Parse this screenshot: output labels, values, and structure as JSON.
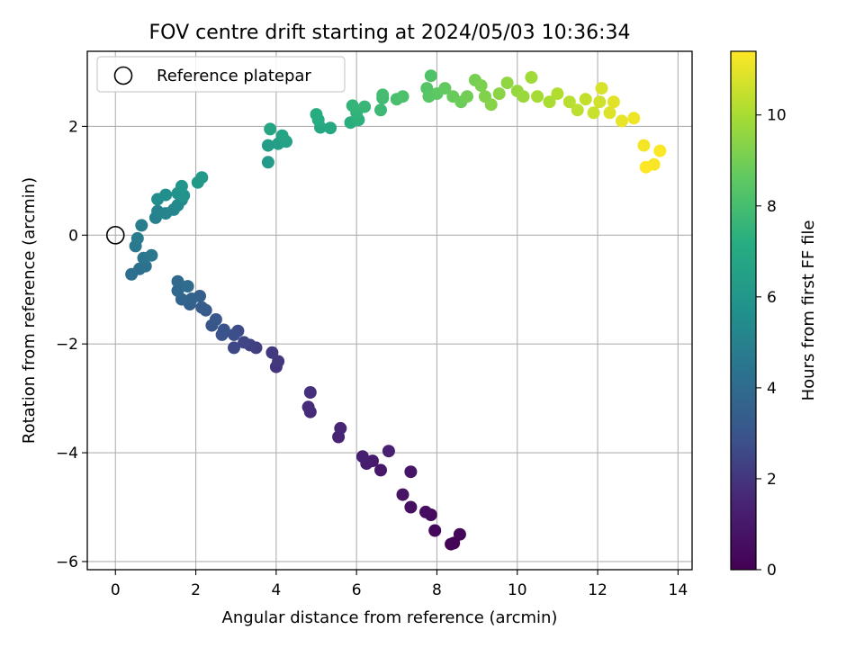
{
  "chart_data": {
    "type": "scatter",
    "title": "FOV centre drift starting at 2024/05/03 10:36:34",
    "xlabel": "Angular distance from reference (arcmin)",
    "ylabel": "Rotation from reference (arcmin)",
    "xlim": [
      -0.7,
      14.35
    ],
    "ylim": [
      -6.15,
      3.38
    ],
    "xticks": [
      0,
      2,
      4,
      6,
      8,
      10,
      12,
      14
    ],
    "yticks": [
      -6,
      -4,
      -2,
      0,
      2
    ],
    "xtick_labels": [
      "0",
      "2",
      "4",
      "6",
      "8",
      "10",
      "12",
      "14"
    ],
    "ytick_labels": [
      "−6",
      "−4",
      "−2",
      "0",
      "2"
    ],
    "grid": true,
    "legend": {
      "placement": "top-left",
      "entries": [
        {
          "label": "Reference platepar",
          "marker": "hollow-circle"
        }
      ]
    },
    "reference_point": {
      "x": 0,
      "y": 0
    },
    "colorbar": {
      "label": "Hours from first FF file",
      "range": [
        0,
        11.4
      ],
      "ticks": [
        0,
        2,
        4,
        6,
        8,
        10
      ],
      "tick_labels": [
        "0",
        "2",
        "4",
        "6",
        "8",
        "10"
      ],
      "colormap": "viridis"
    },
    "points": [
      [
        8.35,
        -5.68,
        0.05
      ],
      [
        8.42,
        -5.66,
        0.15
      ],
      [
        8.57,
        -5.5,
        0.25
      ],
      [
        7.95,
        -5.43,
        0.35
      ],
      [
        7.85,
        -5.14,
        0.45
      ],
      [
        7.72,
        -5.09,
        0.55
      ],
      [
        7.35,
        -5.0,
        0.65
      ],
      [
        7.15,
        -4.77,
        0.75
      ],
      [
        7.35,
        -4.35,
        0.85
      ],
      [
        6.6,
        -4.32,
        0.95
      ],
      [
        6.4,
        -4.15,
        1.05
      ],
      [
        6.25,
        -4.2,
        1.15
      ],
      [
        6.15,
        -4.07,
        1.25
      ],
      [
        6.8,
        -3.97,
        1.35
      ],
      [
        5.55,
        -3.71,
        1.45
      ],
      [
        5.6,
        -3.55,
        1.55
      ],
      [
        4.85,
        -3.25,
        1.65
      ],
      [
        4.8,
        -3.16,
        1.75
      ],
      [
        4.85,
        -2.89,
        1.85
      ],
      [
        4.0,
        -2.42,
        1.95
      ],
      [
        4.05,
        -2.32,
        2.05
      ],
      [
        3.9,
        -2.16,
        2.15
      ],
      [
        3.5,
        -2.07,
        2.25
      ],
      [
        3.35,
        -2.02,
        2.35
      ],
      [
        3.2,
        -1.97,
        2.45
      ],
      [
        2.95,
        -2.07,
        2.55
      ],
      [
        3.05,
        -1.76,
        2.65
      ],
      [
        2.95,
        -1.83,
        2.75
      ],
      [
        2.65,
        -1.83,
        2.85
      ],
      [
        2.7,
        -1.74,
        2.95
      ],
      [
        2.4,
        -1.66,
        3.05
      ],
      [
        2.5,
        -1.55,
        3.15
      ],
      [
        2.25,
        -1.38,
        3.25
      ],
      [
        2.15,
        -1.33,
        3.35
      ],
      [
        2.1,
        -1.12,
        3.45
      ],
      [
        1.85,
        -1.27,
        3.55
      ],
      [
        1.9,
        -1.17,
        3.65
      ],
      [
        1.65,
        -1.18,
        3.75
      ],
      [
        1.55,
        -1.02,
        3.85
      ],
      [
        1.55,
        -0.85,
        3.95
      ],
      [
        1.8,
        -0.94,
        4.05
      ],
      [
        0.4,
        -0.72,
        4.15
      ],
      [
        0.6,
        -0.62,
        4.25
      ],
      [
        0.75,
        -0.57,
        4.35
      ],
      [
        0.7,
        -0.42,
        4.45
      ],
      [
        0.9,
        -0.37,
        4.55
      ],
      [
        0.5,
        -0.2,
        4.65
      ],
      [
        0.55,
        -0.06,
        4.75
      ],
      [
        0.65,
        0.18,
        4.85
      ],
      [
        1.0,
        0.32,
        4.95
      ],
      [
        1.05,
        0.44,
        5.05
      ],
      [
        1.25,
        0.4,
        5.15
      ],
      [
        1.45,
        0.47,
        5.25
      ],
      [
        1.55,
        0.55,
        5.35
      ],
      [
        1.65,
        0.65,
        5.45
      ],
      [
        1.05,
        0.66,
        5.55
      ],
      [
        1.25,
        0.74,
        5.65
      ],
      [
        1.55,
        0.77,
        5.75
      ],
      [
        1.7,
        0.73,
        5.85
      ],
      [
        1.65,
        0.9,
        5.95
      ],
      [
        2.05,
        0.97,
        6.05
      ],
      [
        2.15,
        1.06,
        6.15
      ],
      [
        3.8,
        1.34,
        6.25
      ],
      [
        3.8,
        1.65,
        6.35
      ],
      [
        4.05,
        1.68,
        6.45
      ],
      [
        4.25,
        1.72,
        6.55
      ],
      [
        4.15,
        1.83,
        6.65
      ],
      [
        3.85,
        1.95,
        6.75
      ],
      [
        5.1,
        1.98,
        6.85
      ],
      [
        5.35,
        1.97,
        6.95
      ],
      [
        5.05,
        2.12,
        7.05
      ],
      [
        5.0,
        2.22,
        7.15
      ],
      [
        5.85,
        2.07,
        7.25
      ],
      [
        6.05,
        2.12,
        7.35
      ],
      [
        6.0,
        2.25,
        7.45
      ],
      [
        5.9,
        2.38,
        7.55
      ],
      [
        6.2,
        2.36,
        7.65
      ],
      [
        6.6,
        2.3,
        7.75
      ],
      [
        6.65,
        2.52,
        7.85
      ],
      [
        6.65,
        2.58,
        7.95
      ],
      [
        7.0,
        2.5,
        8.05
      ],
      [
        7.15,
        2.55,
        8.15
      ],
      [
        7.85,
        2.93,
        8.25
      ],
      [
        7.75,
        2.7,
        8.35
      ],
      [
        7.8,
        2.55,
        8.45
      ],
      [
        8.0,
        2.6,
        8.55
      ],
      [
        8.2,
        2.7,
        8.65
      ],
      [
        8.4,
        2.55,
        8.75
      ],
      [
        8.6,
        2.45,
        8.85
      ],
      [
        8.75,
        2.55,
        8.95
      ],
      [
        8.95,
        2.85,
        9.05
      ],
      [
        9.1,
        2.75,
        9.15
      ],
      [
        9.2,
        2.55,
        9.25
      ],
      [
        9.35,
        2.4,
        9.35
      ],
      [
        9.55,
        2.6,
        9.45
      ],
      [
        9.75,
        2.8,
        9.55
      ],
      [
        10.0,
        2.65,
        9.65
      ],
      [
        10.15,
        2.55,
        9.75
      ],
      [
        10.35,
        2.9,
        9.85
      ],
      [
        10.5,
        2.55,
        9.95
      ],
      [
        10.8,
        2.45,
        10.05
      ],
      [
        11.0,
        2.6,
        10.15
      ],
      [
        11.3,
        2.45,
        10.25
      ],
      [
        11.5,
        2.3,
        10.35
      ],
      [
        11.7,
        2.5,
        10.45
      ],
      [
        11.9,
        2.25,
        10.55
      ],
      [
        12.05,
        2.45,
        10.65
      ],
      [
        12.1,
        2.7,
        10.75
      ],
      [
        12.3,
        2.25,
        10.85
      ],
      [
        12.4,
        2.45,
        10.95
      ],
      [
        12.6,
        2.1,
        11.05
      ],
      [
        12.9,
        2.15,
        11.15
      ],
      [
        13.15,
        1.65,
        11.25
      ],
      [
        13.4,
        1.3,
        11.3
      ],
      [
        13.55,
        1.55,
        11.35
      ],
      [
        13.2,
        1.25,
        11.4
      ]
    ]
  }
}
